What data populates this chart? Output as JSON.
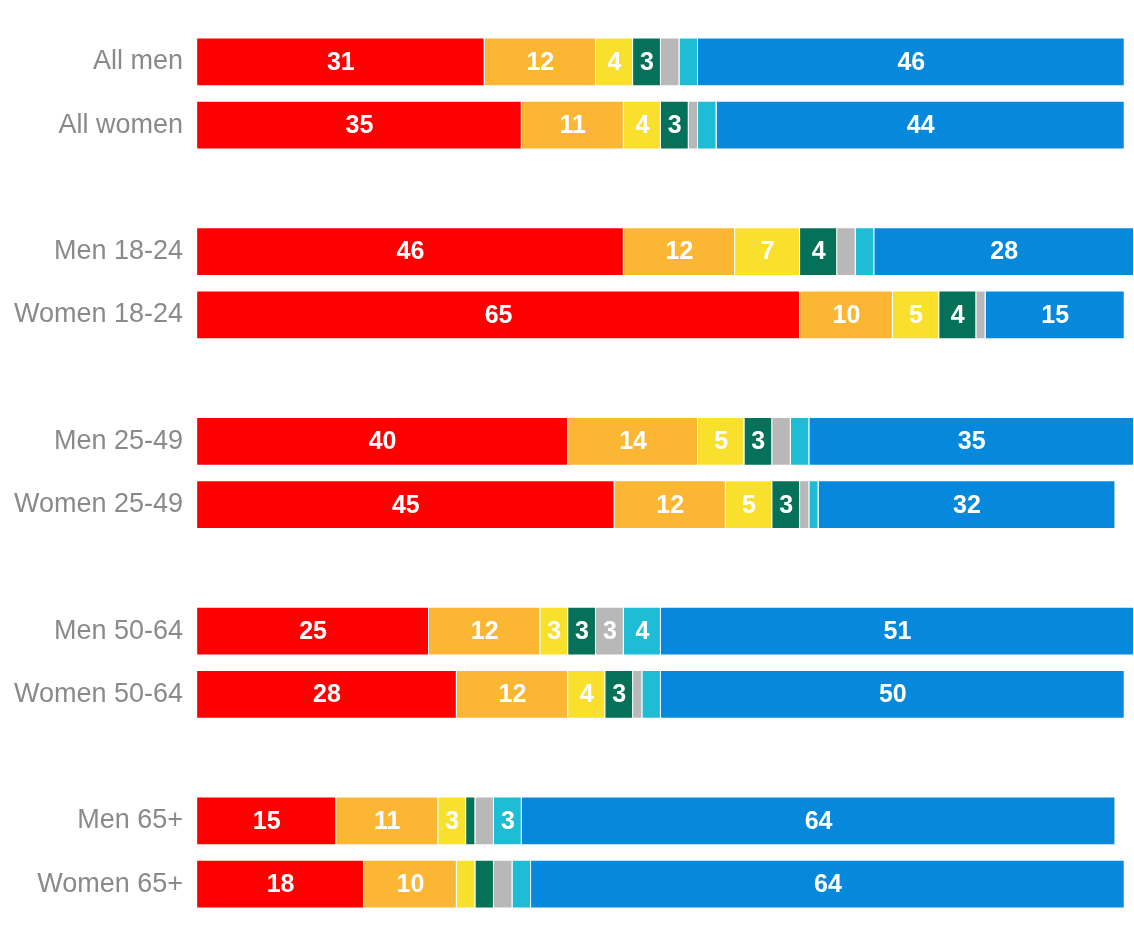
{
  "chart_data": {
    "type": "bar",
    "orientation": "horizontal",
    "stacked": true,
    "legend": false,
    "grid": false,
    "tick_labels": "y",
    "categories": [
      "All men",
      "All women",
      null,
      "Men 18-24",
      "Women 18-24",
      null,
      "Men 25-49",
      "Women 25-49",
      null,
      "Men 50-64",
      "Women 50-64",
      null,
      "Men 65+",
      "Women 65+"
    ],
    "series": [
      {
        "color": "#ff0000",
        "values": [
          31,
          35,
          null,
          46,
          65,
          null,
          40,
          45,
          null,
          25,
          28,
          null,
          15,
          18
        ],
        "value_labels": [
          "31",
          "35",
          null,
          "46",
          "65",
          null,
          "40",
          "45",
          null,
          "25",
          "28",
          null,
          "15",
          "18"
        ]
      },
      {
        "color": "#fbb634",
        "values": [
          12,
          11,
          null,
          12,
          10,
          null,
          14,
          12,
          null,
          12,
          12,
          null,
          11,
          10
        ],
        "value_labels": [
          "12",
          "11",
          null,
          "12",
          "10",
          null,
          "14",
          "12",
          null,
          "12",
          "12",
          null,
          "11",
          "10"
        ]
      },
      {
        "color": "#f9e02d",
        "values": [
          4,
          4,
          null,
          7,
          5,
          null,
          5,
          5,
          null,
          3,
          4,
          null,
          3,
          2
        ],
        "value_labels": [
          "4",
          "4",
          null,
          "7",
          "5",
          null,
          "5",
          "5",
          null,
          "3",
          "4",
          null,
          "3",
          null
        ]
      },
      {
        "color": "#067159",
        "values": [
          3,
          3,
          null,
          4,
          4,
          null,
          3,
          3,
          null,
          3,
          3,
          null,
          1,
          2
        ],
        "value_labels": [
          "3",
          "3",
          null,
          "4",
          "4",
          null,
          "3",
          "3",
          null,
          "3",
          "3",
          null,
          null,
          null
        ]
      },
      {
        "color": "#b8b8b8",
        "values": [
          2,
          1,
          null,
          2,
          1,
          null,
          2,
          1,
          null,
          3,
          1,
          null,
          2,
          2
        ],
        "value_labels": [
          null,
          null,
          null,
          null,
          null,
          null,
          null,
          null,
          null,
          "3",
          null,
          null,
          null,
          null
        ]
      },
      {
        "color": "#1fbcd5",
        "values": [
          2,
          2,
          null,
          2,
          null,
          null,
          2,
          1,
          null,
          4,
          2,
          null,
          3,
          2
        ],
        "value_labels": [
          null,
          null,
          null,
          null,
          null,
          null,
          null,
          null,
          null,
          "4",
          null,
          null,
          "3",
          null
        ]
      },
      {
        "color": "#0689dc",
        "values": [
          46,
          44,
          null,
          28,
          15,
          null,
          35,
          32,
          null,
          51,
          50,
          null,
          64,
          64
        ],
        "value_labels": [
          "46",
          "44",
          null,
          "28",
          "15",
          null,
          "35",
          "32",
          null,
          "51",
          "50",
          null,
          "64",
          "64"
        ]
      }
    ]
  }
}
